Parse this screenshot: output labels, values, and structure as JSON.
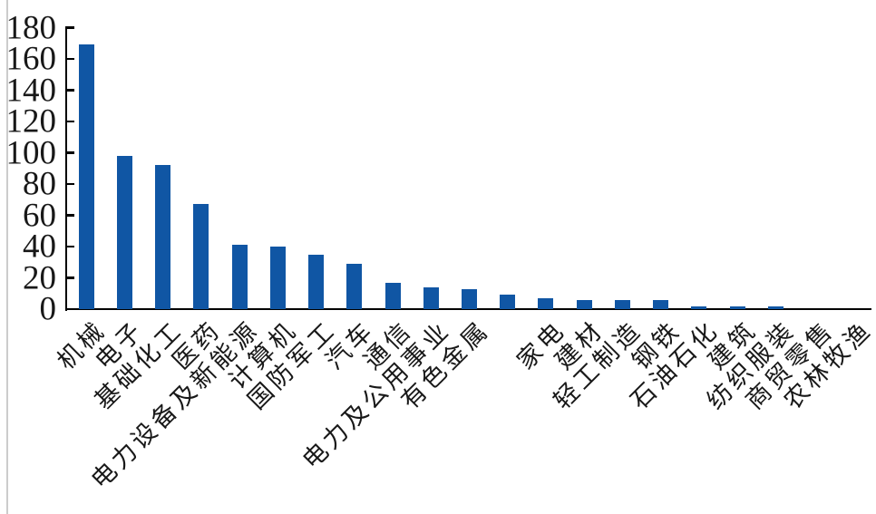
{
  "chart_data": {
    "type": "bar",
    "title": "",
    "xlabel": "",
    "ylabel": "",
    "categories": [
      "机械",
      "电子",
      "基础化工",
      "医药",
      "电力设备及新能源",
      "计算机",
      "国防军工",
      "汽车",
      "通信",
      "电力及公用事业",
      "有色金属",
      "",
      "家电",
      "建材",
      "轻工制造",
      "钢铁",
      "石油石化",
      "建筑",
      "纺织服装",
      "商贸零售",
      "农林牧渔"
    ],
    "values": [
      169,
      98,
      92,
      67,
      41,
      40,
      35,
      29,
      17,
      14,
      13,
      9,
      7,
      6,
      6,
      6,
      2,
      2,
      2,
      0,
      0
    ],
    "ylim": [
      0,
      180
    ],
    "ytick_step": 20,
    "yticks": [
      0,
      20,
      40,
      60,
      80,
      100,
      120,
      140,
      160,
      180
    ],
    "grid": false,
    "legend_position": "none",
    "bar_color": "#1056A4",
    "axis_color": "#000000",
    "text_color": "#181818",
    "background_color": "#ffffff"
  }
}
